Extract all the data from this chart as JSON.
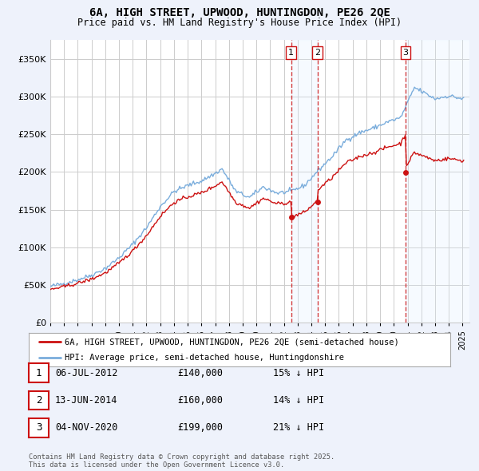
{
  "title_line1": "6A, HIGH STREET, UPWOOD, HUNTINGDON, PE26 2QE",
  "title_line2": "Price paid vs. HM Land Registry's House Price Index (HPI)",
  "hpi_color": "#7aaddc",
  "price_color": "#cc1111",
  "vline_color": "#cc1111",
  "shade_color": "#ddeeff",
  "purchase_dates": [
    2012.52,
    2014.45,
    2020.84
  ],
  "purchase_labels": [
    "1",
    "2",
    "3"
  ],
  "purchase_prices": [
    140000,
    160000,
    199000
  ],
  "purchase_info": [
    {
      "label": "1",
      "date": "06-JUL-2012",
      "price": "£140,000",
      "pct": "15% ↓ HPI"
    },
    {
      "label": "2",
      "date": "13-JUN-2014",
      "price": "£160,000",
      "pct": "14% ↓ HPI"
    },
    {
      "label": "3",
      "date": "04-NOV-2020",
      "price": "£199,000",
      "pct": "21% ↓ HPI"
    }
  ],
  "legend_line1": "6A, HIGH STREET, UPWOOD, HUNTINGDON, PE26 2QE (semi-detached house)",
  "legend_line2": "HPI: Average price, semi-detached house, Huntingdonshire",
  "footnote": "Contains HM Land Registry data © Crown copyright and database right 2025.\nThis data is licensed under the Open Government Licence v3.0.",
  "background_color": "#eef2fb",
  "plot_bg_color": "#ffffff",
  "xlim": [
    1995.0,
    2025.5
  ],
  "ylim": [
    0,
    375000
  ],
  "yticks": [
    0,
    50000,
    100000,
    150000,
    200000,
    250000,
    300000,
    350000
  ],
  "ytick_labels": [
    "£0",
    "£50K",
    "£100K",
    "£150K",
    "£200K",
    "£250K",
    "£300K",
    "£350K"
  ]
}
